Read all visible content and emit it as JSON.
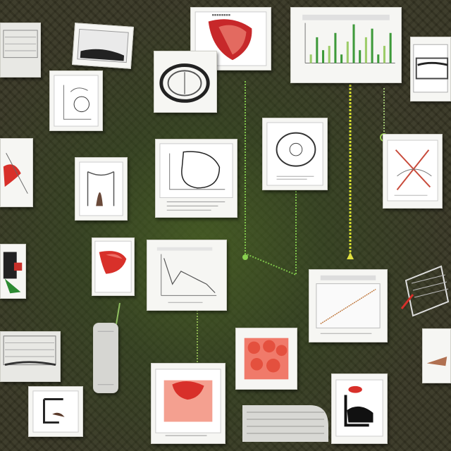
{
  "scene": {
    "description_free": true,
    "palette": {
      "background": "#3b3a27",
      "grass": "#4d6a2a",
      "card": "#f6f6f3",
      "accent_red": "#d8302a",
      "accent_green": "#4aa83a",
      "accent_yellow": "#d8e030"
    },
    "icons": [
      "heart-icon",
      "circle-diagram-icon",
      "arch-diagram-icon",
      "line-chart-icon",
      "bar-chart-icon",
      "x-diagram-icon",
      "muscle-icon"
    ]
  },
  "chart_data": [
    {
      "type": "bar",
      "title": "",
      "categories": [
        "1",
        "2",
        "3",
        "4",
        "5",
        "6",
        "7",
        "8",
        "9",
        "10",
        "11",
        "12",
        "13",
        "14"
      ],
      "values": [
        2,
        6,
        3,
        4,
        7,
        2,
        5,
        9,
        3,
        6,
        8,
        2,
        4,
        7
      ],
      "xlabel": "",
      "ylabel": ""
    },
    {
      "type": "line",
      "title": "",
      "x": [
        0,
        1,
        2,
        3,
        4,
        5,
        6
      ],
      "values": [
        9,
        3,
        6,
        5,
        4,
        3,
        1
      ],
      "xlabel": "",
      "ylabel": ""
    },
    {
      "type": "line",
      "title": "",
      "x": [
        0,
        1,
        2,
        3,
        4,
        5
      ],
      "values": [
        1,
        2,
        3,
        4,
        5,
        6
      ],
      "xlabel": "",
      "ylabel": ""
    }
  ]
}
